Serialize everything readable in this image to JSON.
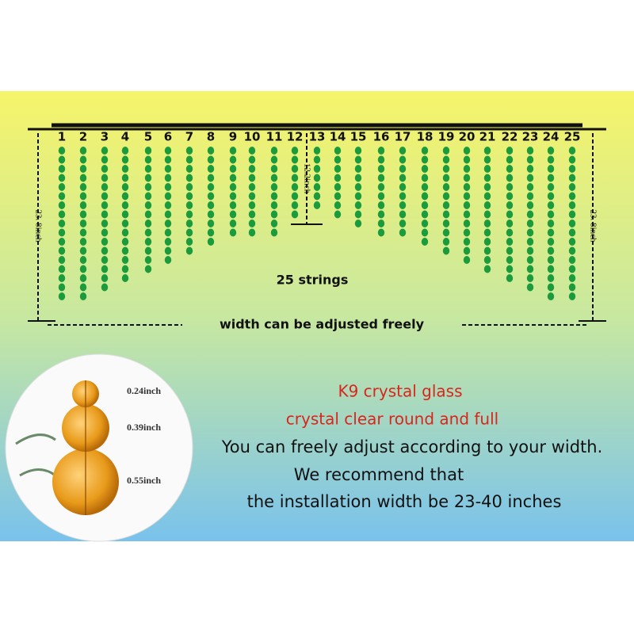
{
  "strings": {
    "labels": [
      "1",
      "2",
      "3",
      "4",
      "5",
      "6",
      "7",
      "8",
      "9",
      "10",
      "11",
      "12",
      "13",
      "14",
      "15",
      "16",
      "17",
      "18",
      "19",
      "20",
      "21",
      "22",
      "23",
      "24",
      "25"
    ],
    "count_label": "25 strings",
    "center_length": "12.2inch",
    "left_length": "23. 8inch",
    "right_length": "23. 8inch",
    "width_note": "width can be adjusted freely"
  },
  "bead_sizes": [
    "0.24inch",
    "0.39inch",
    "0.55inch"
  ],
  "description": {
    "material": "K9 crystal glass",
    "quality": "crystal clear round and full",
    "adjust": "You can freely adjust according to your width.",
    "recommend": "We recommend that",
    "install": "the installation width be 23-40 inches"
  }
}
